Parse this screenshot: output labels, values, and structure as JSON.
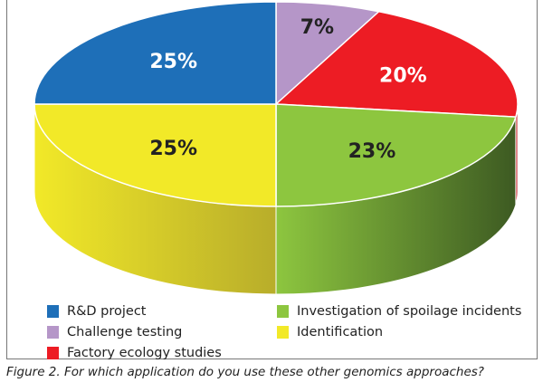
{
  "chart_data": {
    "type": "pie",
    "title": "",
    "caption": "Figure 2. For which application do you use these other genomics approaches?",
    "slices": [
      {
        "label": "Challenge testing",
        "value": 7,
        "display": "7%",
        "color": "#b596c8",
        "side": "#8a6f9a"
      },
      {
        "label": "Factory ecology studies",
        "value": 20,
        "display": "20%",
        "color": "#ed1c24",
        "side": "#9a1217"
      },
      {
        "label": "Investigation of spoilage incidents",
        "value": 23,
        "display": "23%",
        "color": "#8dc63f",
        "side": "#3d5a22"
      },
      {
        "label": "Identification",
        "value": 25,
        "display": "25%",
        "color": "#f2e928",
        "side": "#b8ad2a"
      },
      {
        "label": "R&D project",
        "value": 25,
        "display": "25%",
        "color": "#1e6fb8",
        "side": "#154f86"
      }
    ],
    "label_colors": {
      "Challenge testing": "#222",
      "Factory ecology studies": "#fff",
      "Investigation of spoilage incidents": "#222",
      "Identification": "#222",
      "R&D project": "#fff"
    },
    "legend": [
      {
        "label": "R&D project",
        "color": "#1e6fb8"
      },
      {
        "label": "Challenge testing",
        "color": "#b596c8"
      },
      {
        "label": "Factory ecology studies",
        "color": "#ed1c24"
      },
      {
        "label": "Investigation of spoilage incidents",
        "color": "#8dc63f"
      },
      {
        "label": "Identification",
        "color": "#f2e928"
      }
    ],
    "legend_placement": "bottom"
  }
}
